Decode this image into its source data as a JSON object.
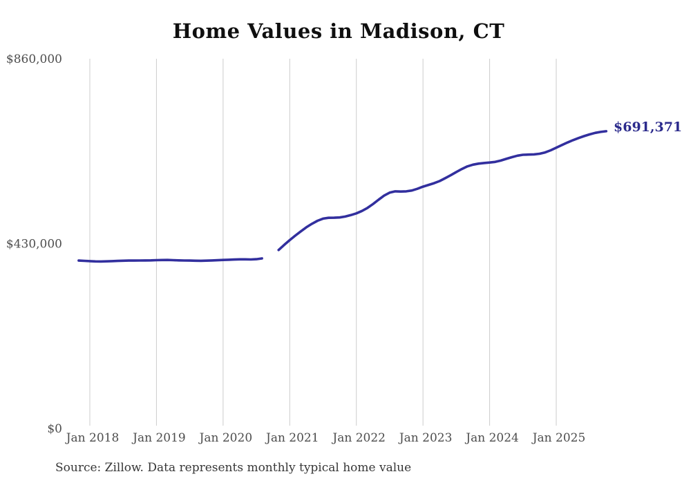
{
  "header": {
    "title": "Home Values in Madison, CT"
  },
  "footer": {
    "source": "Source: Zillow. Data represents monthly typical home value"
  },
  "chart_data": {
    "type": "line",
    "title": "Home Values in Madison, CT",
    "series_name": "Typical home value (monthly)",
    "legend": "none",
    "grid": "vertical-only",
    "ylim": [
      0,
      860000
    ],
    "end_label": "$691,371",
    "end_value": 691371,
    "gap_months": [
      "Sep 2020",
      "Oct 2020"
    ],
    "y_ticks": [
      {
        "label": "$0",
        "value": 0
      },
      {
        "label": "$430,000",
        "value": 430000
      },
      {
        "label": "$860,000",
        "value": 860000
      }
    ],
    "x_ticks": [
      {
        "label": "Jan 2018",
        "index": 2
      },
      {
        "label": "Jan 2019",
        "index": 14
      },
      {
        "label": "Jan 2020",
        "index": 26
      },
      {
        "label": "Jan 2021",
        "index": 38
      },
      {
        "label": "Jan 2022",
        "index": 50
      },
      {
        "label": "Jan 2023",
        "index": 62
      },
      {
        "label": "Jan 2024",
        "index": 74
      },
      {
        "label": "Jan 2025",
        "index": 86
      }
    ],
    "x": [
      "Nov 2017",
      "Dec 2017",
      "Jan 2018",
      "Feb 2018",
      "Mar 2018",
      "Apr 2018",
      "May 2018",
      "Jun 2018",
      "Jul 2018",
      "Aug 2018",
      "Sep 2018",
      "Oct 2018",
      "Nov 2018",
      "Dec 2018",
      "Jan 2019",
      "Feb 2019",
      "Mar 2019",
      "Apr 2019",
      "May 2019",
      "Jun 2019",
      "Jul 2019",
      "Aug 2019",
      "Sep 2019",
      "Oct 2019",
      "Nov 2019",
      "Dec 2019",
      "Jan 2020",
      "Feb 2020",
      "Mar 2020",
      "Apr 2020",
      "May 2020",
      "Jun 2020",
      "Jul 2020",
      "Aug 2020",
      "Sep 2020",
      "Oct 2020",
      "Nov 2020",
      "Dec 2020",
      "Jan 2021",
      "Feb 2021",
      "Mar 2021",
      "Apr 2021",
      "May 2021",
      "Jun 2021",
      "Jul 2021",
      "Aug 2021",
      "Sep 2021",
      "Oct 2021",
      "Nov 2021",
      "Dec 2021",
      "Jan 2022",
      "Feb 2022",
      "Mar 2022",
      "Apr 2022",
      "May 2022",
      "Jun 2022",
      "Jul 2022",
      "Aug 2022",
      "Sep 2022",
      "Oct 2022",
      "Nov 2022",
      "Dec 2022",
      "Jan 2023",
      "Feb 2023",
      "Mar 2023",
      "Apr 2023",
      "May 2023",
      "Jun 2023",
      "Jul 2023",
      "Aug 2023",
      "Sep 2023",
      "Oct 2023",
      "Nov 2023",
      "Dec 2023",
      "Jan 2024",
      "Feb 2024",
      "Mar 2024",
      "Apr 2024",
      "May 2024",
      "Jun 2024",
      "Jul 2024",
      "Aug 2024",
      "Sep 2024",
      "Oct 2024",
      "Nov 2024",
      "Dec 2024",
      "Jan 2025",
      "Feb 2025",
      "Mar 2025",
      "Apr 2025",
      "May 2025",
      "Jun 2025",
      "Jul 2025",
      "Aug 2025",
      "Sep 2025",
      "Oct 2025"
    ],
    "values": [
      390500,
      389800,
      389200,
      388600,
      388400,
      388700,
      389100,
      389600,
      390100,
      390400,
      390500,
      390600,
      390800,
      391000,
      391400,
      391800,
      391900,
      391500,
      391000,
      390600,
      390400,
      390100,
      390000,
      390300,
      390800,
      391300,
      391900,
      392400,
      392900,
      393300,
      393400,
      393100,
      393600,
      395500,
      null,
      null,
      415000,
      427000,
      438000,
      448500,
      458500,
      468000,
      476000,
      483000,
      488000,
      490000,
      490200,
      490800,
      492800,
      496200,
      500300,
      505800,
      513000,
      522000,
      532000,
      541500,
      548500,
      551500,
      551000,
      551500,
      553500,
      557500,
      562500,
      566500,
      570500,
      575500,
      582000,
      589000,
      596500,
      603500,
      609500,
      613500,
      616000,
      617500,
      618500,
      620000,
      623000,
      627000,
      631000,
      634500,
      636500,
      637000,
      637500,
      639000,
      642000,
      647000,
      653000,
      659000,
      665000,
      670500,
      675500,
      680000,
      684000,
      687500,
      689800,
      691371
    ],
    "colors": {
      "line": "#322f9e",
      "end_label": "#2b2a8c",
      "grid": "#cccccc",
      "tick_text": "#4d4d4d",
      "title": "#0f0f0f",
      "source": "#363636"
    }
  }
}
